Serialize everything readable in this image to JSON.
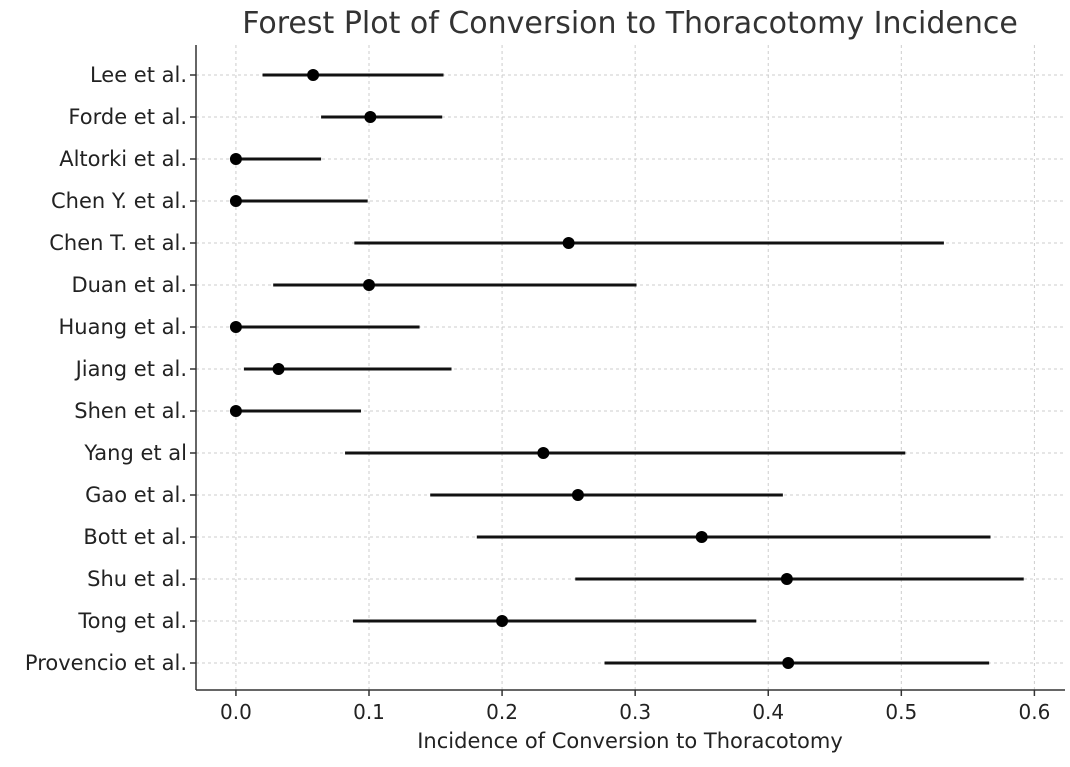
{
  "chart_data": {
    "type": "scatter",
    "subtype": "forest-plot",
    "title": "Forest Plot of Conversion to Thoracotomy Incidence",
    "xlabel": "Incidence of Conversion to Thoracotomy",
    "ylabel": "",
    "xlim": [
      -0.03,
      0.623
    ],
    "xticks": [
      0.0,
      0.1,
      0.2,
      0.3,
      0.4,
      0.5,
      0.6
    ],
    "xtick_labels": [
      "0.0",
      "0.1",
      "0.2",
      "0.3",
      "0.4",
      "0.5",
      "0.6"
    ],
    "grid": true,
    "studies": [
      {
        "label": "Lee et al.",
        "estimate": 0.058,
        "lower": 0.02,
        "upper": 0.156
      },
      {
        "label": "Forde et al.",
        "estimate": 0.101,
        "lower": 0.064,
        "upper": 0.155
      },
      {
        "label": "Altorki et al.",
        "estimate": 0.0,
        "lower": 0.0,
        "upper": 0.064
      },
      {
        "label": "Chen Y. et al.",
        "estimate": 0.0,
        "lower": 0.0,
        "upper": 0.099
      },
      {
        "label": "Chen T. et al.",
        "estimate": 0.25,
        "lower": 0.089,
        "upper": 0.532
      },
      {
        "label": "Duan et al.",
        "estimate": 0.1,
        "lower": 0.028,
        "upper": 0.301
      },
      {
        "label": "Huang et al.",
        "estimate": 0.0,
        "lower": 0.0,
        "upper": 0.138
      },
      {
        "label": "Jiang et al.",
        "estimate": 0.032,
        "lower": 0.006,
        "upper": 0.162
      },
      {
        "label": "Shen et al.",
        "estimate": 0.0,
        "lower": 0.0,
        "upper": 0.094
      },
      {
        "label": "Yang et al",
        "estimate": 0.231,
        "lower": 0.082,
        "upper": 0.503
      },
      {
        "label": "Gao et al.",
        "estimate": 0.257,
        "lower": 0.146,
        "upper": 0.411
      },
      {
        "label": "Bott et al.",
        "estimate": 0.35,
        "lower": 0.181,
        "upper": 0.567
      },
      {
        "label": "Shu et al.",
        "estimate": 0.414,
        "lower": 0.255,
        "upper": 0.592
      },
      {
        "label": "Tong et al.",
        "estimate": 0.2,
        "lower": 0.088,
        "upper": 0.391
      },
      {
        "label": "Provencio et al.",
        "estimate": 0.415,
        "lower": 0.277,
        "upper": 0.566
      }
    ]
  }
}
